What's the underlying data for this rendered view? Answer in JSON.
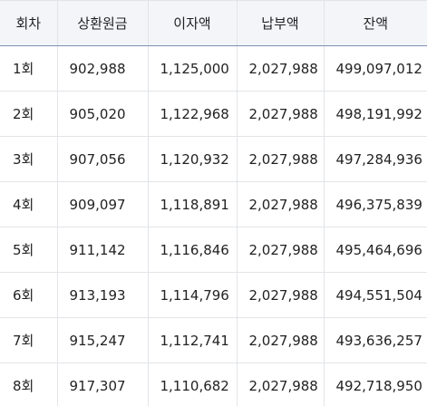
{
  "table": {
    "headers": [
      "회차",
      "상환원금",
      "이자액",
      "납부액",
      "잔액"
    ],
    "rows": [
      [
        "1회",
        "902,988",
        "1,125,000",
        "2,027,988",
        "499,097,012"
      ],
      [
        "2회",
        "905,020",
        "1,122,968",
        "2,027,988",
        "498,191,992"
      ],
      [
        "3회",
        "907,056",
        "1,120,932",
        "2,027,988",
        "497,284,936"
      ],
      [
        "4회",
        "909,097",
        "1,118,891",
        "2,027,988",
        "496,375,839"
      ],
      [
        "5회",
        "911,142",
        "1,116,846",
        "2,027,988",
        "495,464,696"
      ],
      [
        "6회",
        "913,193",
        "1,114,796",
        "2,027,988",
        "494,551,504"
      ],
      [
        "7회",
        "915,247",
        "1,112,741",
        "2,027,988",
        "493,636,257"
      ],
      [
        "8회",
        "917,307",
        "1,110,682",
        "2,027,988",
        "492,718,950"
      ]
    ]
  }
}
